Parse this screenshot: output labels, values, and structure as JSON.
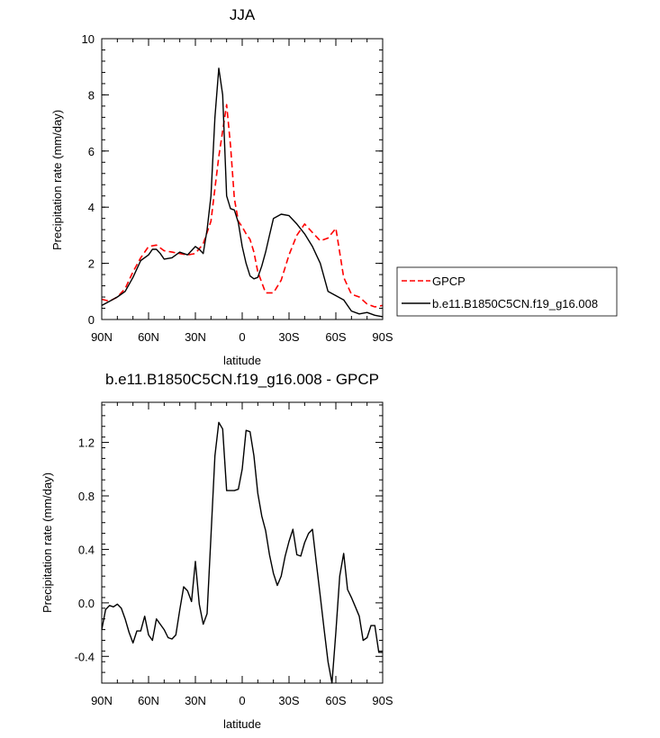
{
  "chart_data": [
    {
      "type": "line",
      "title": "JJA",
      "xlabel": "latitude",
      "ylabel": "Precipitation rate (mm/day)",
      "xlim": [
        90,
        -90
      ],
      "ylim": [
        0,
        10
      ],
      "xticks": [
        {
          "v": 90,
          "label": "90N"
        },
        {
          "v": 60,
          "label": "60N"
        },
        {
          "v": 30,
          "label": "30N"
        },
        {
          "v": 0,
          "label": "0"
        },
        {
          "v": -30,
          "label": "30S"
        },
        {
          "v": -60,
          "label": "60S"
        },
        {
          "v": -90,
          "label": "90S"
        }
      ],
      "yticks": [
        {
          "v": 0,
          "label": "0"
        },
        {
          "v": 2,
          "label": "2"
        },
        {
          "v": 4,
          "label": "4"
        },
        {
          "v": 6,
          "label": "6"
        },
        {
          "v": 8,
          "label": "8"
        },
        {
          "v": 10,
          "label": "10"
        }
      ],
      "legend": {
        "placement": "right"
      },
      "series": [
        {
          "name": "GPCP",
          "color": "#ff0000",
          "dash": "dashed",
          "x": [
            90,
            85,
            80,
            75,
            70,
            65,
            60,
            55,
            50,
            45,
            40,
            35,
            30,
            25,
            20,
            15,
            10,
            7.5,
            5,
            2.5,
            0,
            -2.5,
            -5,
            -7.5,
            -10,
            -15,
            -20,
            -25,
            -30,
            -35,
            -40,
            -45,
            -50,
            -55,
            -60,
            -65,
            -70,
            -75,
            -80,
            -85,
            -90
          ],
          "y": [
            0.72,
            0.65,
            0.8,
            1.1,
            1.7,
            2.2,
            2.6,
            2.65,
            2.45,
            2.4,
            2.35,
            2.3,
            2.35,
            2.7,
            3.5,
            5.8,
            7.65,
            6.2,
            4.3,
            3.5,
            3.3,
            3.05,
            2.85,
            2.4,
            1.7,
            0.95,
            0.95,
            1.4,
            2.3,
            3.0,
            3.4,
            3.1,
            2.8,
            2.9,
            3.25,
            1.5,
            0.9,
            0.8,
            0.55,
            0.45,
            0.5
          ]
        },
        {
          "name": "b.e11.B1850C5CN.f19_g16.008",
          "color": "#000000",
          "dash": "solid",
          "x": [
            90,
            85,
            80,
            75,
            70,
            65,
            60,
            57.5,
            55,
            52.5,
            50,
            45,
            40,
            35,
            30,
            27.5,
            25,
            22.5,
            20,
            17.5,
            15,
            12.5,
            10,
            7.5,
            5,
            2.5,
            0,
            -2.5,
            -5,
            -7.5,
            -10,
            -12.5,
            -15,
            -17.5,
            -20,
            -25,
            -30,
            -35,
            -40,
            -45,
            -50,
            -55,
            -60,
            -65,
            -70,
            -75,
            -80,
            -85,
            -90
          ],
          "y": [
            0.5,
            0.65,
            0.8,
            1.0,
            1.5,
            2.1,
            2.3,
            2.5,
            2.5,
            2.35,
            2.15,
            2.2,
            2.4,
            2.3,
            2.6,
            2.5,
            2.35,
            3.2,
            4.4,
            7.2,
            8.95,
            8.0,
            4.4,
            3.95,
            3.9,
            3.45,
            2.6,
            2.0,
            1.55,
            1.45,
            1.5,
            1.9,
            2.4,
            3.0,
            3.6,
            3.75,
            3.7,
            3.4,
            3.05,
            2.6,
            2.0,
            1.0,
            0.85,
            0.7,
            0.3,
            0.2,
            0.25,
            0.15,
            0.1
          ]
        }
      ]
    },
    {
      "type": "line",
      "title": "b.e11.B1850C5CN.f19_g16.008 - GPCP",
      "xlabel": "latitude",
      "ylabel": "Precipitation rate (mm/day)",
      "xlim": [
        90,
        -90
      ],
      "ylim": [
        -0.6,
        1.5
      ],
      "xticks": [
        {
          "v": 90,
          "label": "90N"
        },
        {
          "v": 60,
          "label": "60N"
        },
        {
          "v": 30,
          "label": "30N"
        },
        {
          "v": 0,
          "label": "0"
        },
        {
          "v": -30,
          "label": "30S"
        },
        {
          "v": -60,
          "label": "60S"
        },
        {
          "v": -90,
          "label": "90S"
        }
      ],
      "yticks": [
        {
          "v": -0.4,
          "label": "-0.4"
        },
        {
          "v": 0.0,
          "label": "0.0"
        },
        {
          "v": 0.4,
          "label": "0.4"
        },
        {
          "v": 0.8,
          "label": "0.8"
        },
        {
          "v": 1.2,
          "label": "1.2"
        }
      ],
      "series": [
        {
          "color": "#000000",
          "dash": "solid",
          "x": [
            90,
            87.5,
            85,
            82.5,
            80,
            77.5,
            75,
            72.5,
            70,
            67.5,
            65,
            62.5,
            60,
            57.5,
            55,
            52.5,
            50,
            47.5,
            45,
            42.5,
            40,
            37.5,
            35,
            32.5,
            30,
            27.5,
            25,
            22.5,
            20,
            17.5,
            15,
            12.5,
            10,
            7.5,
            5,
            2.5,
            0,
            -2.5,
            -5,
            -7.5,
            -10,
            -12.5,
            -15,
            -17.5,
            -20,
            -22.5,
            -25,
            -27.5,
            -30,
            -32.5,
            -35,
            -37.5,
            -40,
            -42.5,
            -45,
            -47.5,
            -50,
            -52.5,
            -55,
            -57.5,
            -60,
            -62.5,
            -65,
            -67.5,
            -70,
            -72.5,
            -75,
            -77.5,
            -80,
            -82.5,
            -85,
            -87.5,
            -90
          ],
          "y": [
            -0.2,
            -0.05,
            -0.02,
            -0.03,
            -0.01,
            -0.04,
            -0.12,
            -0.22,
            -0.3,
            -0.21,
            -0.21,
            -0.1,
            -0.24,
            -0.28,
            -0.12,
            -0.16,
            -0.2,
            -0.26,
            -0.27,
            -0.24,
            -0.05,
            0.12,
            0.09,
            0.01,
            0.31,
            -0.01,
            -0.16,
            -0.08,
            0.5,
            1.1,
            1.35,
            1.3,
            0.84,
            0.84,
            0.84,
            0.85,
            1.0,
            1.29,
            1.28,
            1.1,
            0.82,
            0.65,
            0.54,
            0.36,
            0.22,
            0.13,
            0.2,
            0.35,
            0.46,
            0.55,
            0.36,
            0.35,
            0.45,
            0.52,
            0.55,
            0.3,
            0.05,
            -0.2,
            -0.44,
            -0.6,
            -0.22,
            0.2,
            0.37,
            0.1,
            0.04,
            -0.03,
            -0.1,
            -0.28,
            -0.26,
            -0.17,
            -0.17,
            -0.37,
            -0.37
          ]
        }
      ]
    }
  ]
}
